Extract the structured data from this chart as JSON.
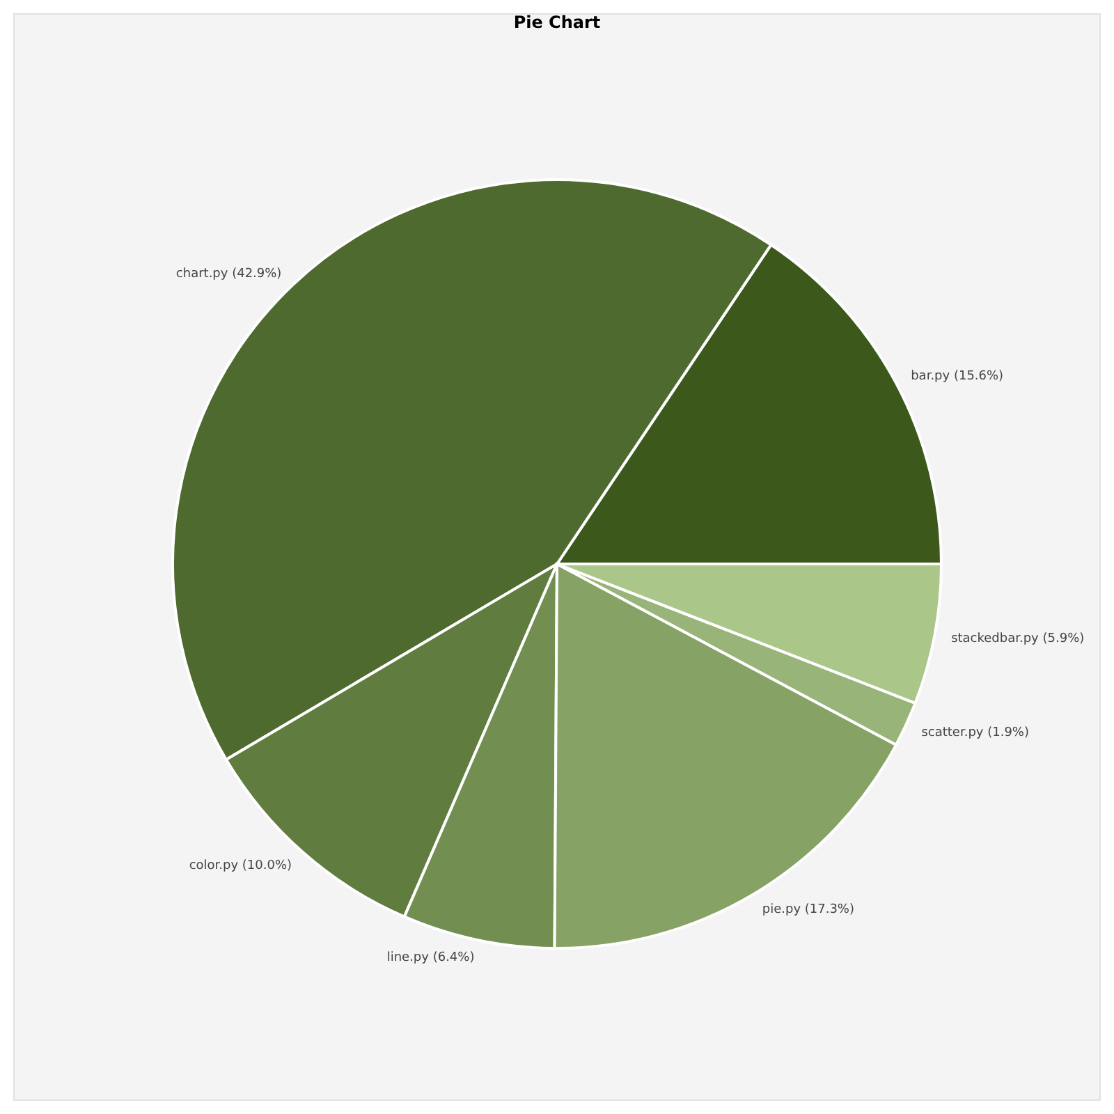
{
  "chart_data": {
    "type": "pie",
    "title": "Pie Chart",
    "categories": [
      "bar.py",
      "chart.py",
      "color.py",
      "line.py",
      "pie.py",
      "scatter.py",
      "stackedbar.py"
    ],
    "values": [
      15.6,
      42.9,
      10.0,
      6.4,
      17.3,
      1.9,
      5.9
    ],
    "value_labels": [
      "(15.6%)",
      "(42.9%)",
      "(10.0%)",
      "(6.4%)",
      "(17.3%)",
      "(1.9%)",
      "(5.9%)"
    ],
    "colors": [
      "#3d581b",
      "#4e6a2e",
      "#607c3e",
      "#728e50",
      "#87a265",
      "#98b478",
      "#aac688"
    ]
  }
}
